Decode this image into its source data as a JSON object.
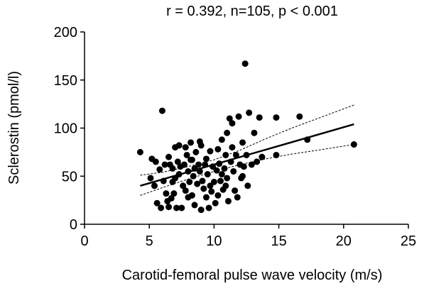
{
  "chart_data": {
    "type": "scatter",
    "title": "r = 0.392, n=105, p < 0.001",
    "xlabel": "Carotid-femoral pulse wave velocity (m/s)",
    "ylabel": "Sclerostin (pmol/l)",
    "xlim": [
      0,
      25
    ],
    "ylim": [
      0,
      200
    ],
    "xticks": [
      "0",
      "5",
      "10",
      "15",
      "20",
      "25"
    ],
    "yticks": [
      "0",
      "50",
      "100",
      "150",
      "200"
    ],
    "grid": false,
    "legend": "none",
    "point_color": "#000000",
    "regression": {
      "x": [
        4.3,
        20.8
      ],
      "y": [
        40,
        104
      ]
    },
    "ci_upper": {
      "x": [
        4.3,
        6,
        8,
        10,
        12,
        14,
        16,
        18,
        20.8
      ],
      "y": [
        51,
        54,
        60,
        67,
        77,
        89,
        100,
        110,
        124
      ]
    },
    "ci_lower": {
      "x": [
        4.3,
        6,
        8,
        10,
        12,
        14,
        16,
        18,
        20.8
      ],
      "y": [
        30,
        38,
        47,
        55,
        62,
        68,
        73,
        77,
        83
      ]
    },
    "points": [
      {
        "x": 4.3,
        "y": 75
      },
      {
        "x": 5.1,
        "y": 48
      },
      {
        "x": 5.2,
        "y": 68
      },
      {
        "x": 5.5,
        "y": 65
      },
      {
        "x": 5.6,
        "y": 22
      },
      {
        "x": 5.8,
        "y": 57
      },
      {
        "x": 5.9,
        "y": 17
      },
      {
        "x": 6.0,
        "y": 118
      },
      {
        "x": 6.1,
        "y": 45
      },
      {
        "x": 6.3,
        "y": 32
      },
      {
        "x": 6.4,
        "y": 24
      },
      {
        "x": 6.5,
        "y": 18
      },
      {
        "x": 6.5,
        "y": 70
      },
      {
        "x": 6.6,
        "y": 62
      },
      {
        "x": 6.7,
        "y": 27
      },
      {
        "x": 6.8,
        "y": 58
      },
      {
        "x": 6.9,
        "y": 32
      },
      {
        "x": 7.0,
        "y": 80
      },
      {
        "x": 7.0,
        "y": 48
      },
      {
        "x": 7.1,
        "y": 17
      },
      {
        "x": 7.2,
        "y": 65
      },
      {
        "x": 7.3,
        "y": 82
      },
      {
        "x": 7.4,
        "y": 60
      },
      {
        "x": 7.5,
        "y": 17
      },
      {
        "x": 7.6,
        "y": 40
      },
      {
        "x": 7.7,
        "y": 62
      },
      {
        "x": 7.8,
        "y": 80
      },
      {
        "x": 7.9,
        "y": 72
      },
      {
        "x": 8.0,
        "y": 28
      },
      {
        "x": 8.0,
        "y": 55
      },
      {
        "x": 8.1,
        "y": 44
      },
      {
        "x": 8.2,
        "y": 85
      },
      {
        "x": 8.2,
        "y": 67
      },
      {
        "x": 8.3,
        "y": 30
      },
      {
        "x": 8.4,
        "y": 50
      },
      {
        "x": 8.5,
        "y": 58
      },
      {
        "x": 8.5,
        "y": 20
      },
      {
        "x": 8.6,
        "y": 75
      },
      {
        "x": 8.7,
        "y": 42
      },
      {
        "x": 8.8,
        "y": 62
      },
      {
        "x": 8.9,
        "y": 55
      },
      {
        "x": 9.0,
        "y": 15
      },
      {
        "x": 9.0,
        "y": 82
      },
      {
        "x": 9.1,
        "y": 45
      },
      {
        "x": 9.2,
        "y": 37
      },
      {
        "x": 9.3,
        "y": 62
      },
      {
        "x": 9.4,
        "y": 28
      },
      {
        "x": 9.5,
        "y": 52
      },
      {
        "x": 9.6,
        "y": 17
      },
      {
        "x": 9.7,
        "y": 76
      },
      {
        "x": 9.8,
        "y": 34
      },
      {
        "x": 9.9,
        "y": 60
      },
      {
        "x": 10.0,
        "y": 44
      },
      {
        "x": 10.1,
        "y": 22
      },
      {
        "x": 10.2,
        "y": 56
      },
      {
        "x": 10.3,
        "y": 30
      },
      {
        "x": 10.4,
        "y": 63
      },
      {
        "x": 10.5,
        "y": 45
      },
      {
        "x": 10.6,
        "y": 52
      },
      {
        "x": 10.6,
        "y": 88
      },
      {
        "x": 10.7,
        "y": 36
      },
      {
        "x": 10.8,
        "y": 58
      },
      {
        "x": 10.9,
        "y": 40
      },
      {
        "x": 11.0,
        "y": 95
      },
      {
        "x": 11.0,
        "y": 48
      },
      {
        "x": 11.1,
        "y": 24
      },
      {
        "x": 11.2,
        "y": 110
      },
      {
        "x": 11.3,
        "y": 65
      },
      {
        "x": 11.4,
        "y": 80
      },
      {
        "x": 11.5,
        "y": 55
      },
      {
        "x": 11.6,
        "y": 35
      },
      {
        "x": 11.7,
        "y": 72
      },
      {
        "x": 11.8,
        "y": 28
      },
      {
        "x": 11.9,
        "y": 112
      },
      {
        "x": 12.0,
        "y": 62
      },
      {
        "x": 12.1,
        "y": 48
      },
      {
        "x": 12.2,
        "y": 85
      },
      {
        "x": 12.3,
        "y": 60
      },
      {
        "x": 12.4,
        "y": 167
      },
      {
        "x": 12.5,
        "y": 72
      },
      {
        "x": 12.6,
        "y": 40
      },
      {
        "x": 12.7,
        "y": 116
      },
      {
        "x": 12.9,
        "y": 62
      },
      {
        "x": 13.1,
        "y": 95
      },
      {
        "x": 13.3,
        "y": 65
      },
      {
        "x": 13.5,
        "y": 111
      },
      {
        "x": 13.7,
        "y": 70
      },
      {
        "x": 14.8,
        "y": 111
      },
      {
        "x": 14.8,
        "y": 72
      },
      {
        "x": 16.6,
        "y": 112
      },
      {
        "x": 17.2,
        "y": 88
      },
      {
        "x": 20.8,
        "y": 83
      },
      {
        "x": 9.4,
        "y": 68
      },
      {
        "x": 10.9,
        "y": 72
      },
      {
        "x": 8.9,
        "y": 86
      },
      {
        "x": 7.3,
        "y": 52
      },
      {
        "x": 6.2,
        "y": 62
      },
      {
        "x": 11.4,
        "y": 105
      },
      {
        "x": 12.2,
        "y": 50
      },
      {
        "x": 10.3,
        "y": 78
      },
      {
        "x": 9.7,
        "y": 40
      },
      {
        "x": 8.3,
        "y": 67
      },
      {
        "x": 7.8,
        "y": 35
      },
      {
        "x": 6.8,
        "y": 44
      },
      {
        "x": 5.4,
        "y": 40
      }
    ]
  }
}
